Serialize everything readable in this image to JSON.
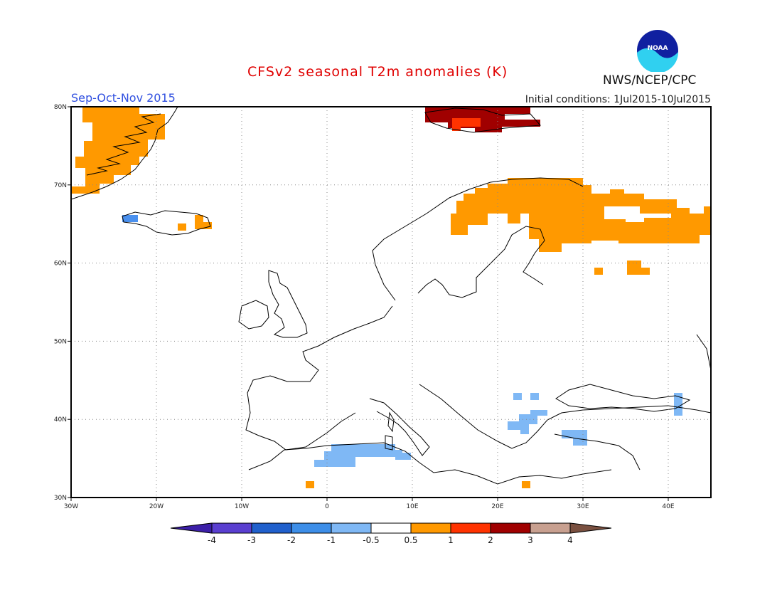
{
  "header": {
    "title": "CFSv2 seasonal T2m anomalies (K)",
    "season": "Sep-Oct-Nov 2015",
    "initial_conditions": "Initial conditions: 1Jul2015-10Jul2015",
    "agency": "NWS/NCEP/CPC",
    "logo_text": "NOAA"
  },
  "map": {
    "lon_range": [
      -30,
      45
    ],
    "lat_range": [
      30,
      80
    ],
    "lat_ticks": [
      "30N",
      "40N",
      "50N",
      "60N",
      "70N",
      "80N"
    ],
    "lon_ticks": [
      "30W",
      "20W",
      "10W",
      "0",
      "10E",
      "20E",
      "30E",
      "40E"
    ],
    "grid": true,
    "anomaly_regions": [
      {
        "name": "greenland",
        "color": "#ff9900"
      },
      {
        "name": "svalbard",
        "color": "#a00000"
      },
      {
        "name": "svalbard-core",
        "color": "#ff3300"
      },
      {
        "name": "scandinavia-russia",
        "color": "#ff9900"
      },
      {
        "name": "west-russia-small",
        "color": "#ff9900"
      },
      {
        "name": "iceland",
        "color": "#ff9900"
      },
      {
        "name": "iceland-west",
        "color": "#4a90ee"
      },
      {
        "name": "north-africa",
        "color": "#7fb8f5"
      },
      {
        "name": "balkans-greece",
        "color": "#7fb8f5"
      },
      {
        "name": "turkey",
        "color": "#7fb8f5"
      },
      {
        "name": "caucasus",
        "color": "#7fb8f5"
      },
      {
        "name": "algeria-dot",
        "color": "#ff9900"
      },
      {
        "name": "libya-dot",
        "color": "#ff9900"
      }
    ]
  },
  "colorbar": {
    "labels": [
      "-4",
      "-3",
      "-2",
      "-1",
      "-0.5",
      "0.5",
      "1",
      "2",
      "3",
      "4"
    ],
    "colors": [
      "#3c1fa8",
      "#5a3fd0",
      "#2060cc",
      "#3d8ee8",
      "#7fb8f5",
      "#ffffff",
      "#ff9900",
      "#ff3300",
      "#a00000",
      "#c8a090",
      "#7a5040"
    ]
  }
}
